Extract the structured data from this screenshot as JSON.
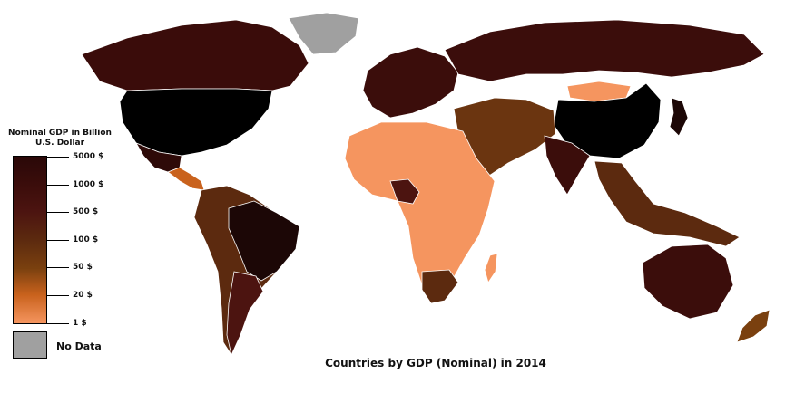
{
  "legend": {
    "title_line1": "Nominal GDP in Billion",
    "title_line2": "U.S. Dollar",
    "labels": [
      "5000 $",
      "1000 $",
      "500 $",
      "100 $",
      "50 $",
      "20 $",
      "1 $"
    ],
    "no_data_label": "No Data",
    "no_data_color": "#a0a0a0",
    "gradient_colors": [
      "#2a0808",
      "#3b0d0b",
      "#4c1410",
      "#5c2a0f",
      "#7a400f",
      "#c9621d",
      "#f5955f"
    ]
  },
  "map_title": "Countries by GDP (Nominal) in 2014",
  "regions": {
    "north_america": {
      "name": "North America",
      "color": "#3a0c0a"
    },
    "usa": {
      "name": "USA",
      "color": "#000000"
    },
    "greenland": {
      "name": "Greenland",
      "color": "#a0a0a0"
    },
    "mexico": {
      "name": "Mexico",
      "color": "#2e0a08"
    },
    "central_america": {
      "name": "Central America",
      "color": "#c9621d"
    },
    "south_america": {
      "name": "South America",
      "color": "#5c2a0f"
    },
    "brazil": {
      "name": "Brazil",
      "color": "#1c0706"
    },
    "argentina": {
      "name": "Argentina",
      "color": "#4c1410"
    },
    "europe": {
      "name": "Europe",
      "color": "#3b0d0b"
    },
    "russia": {
      "name": "Russia",
      "color": "#3b0d0b"
    },
    "china": {
      "name": "China",
      "color": "#000000"
    },
    "mongolia": {
      "name": "Mongolia",
      "color": "#f5955f"
    },
    "middle_east": {
      "name": "Middle East",
      "color": "#6b3510"
    },
    "india": {
      "name": "India",
      "color": "#3b0d0b"
    },
    "southeast_asia": {
      "name": "Southeast Asia",
      "color": "#5c2a0f"
    },
    "japan": {
      "name": "Japan",
      "color": "#1c0706"
    },
    "africa": {
      "name": "Africa",
      "color": "#f5955f"
    },
    "nigeria": {
      "name": "Nigeria",
      "color": "#4c1410"
    },
    "south_africa": {
      "name": "South Africa",
      "color": "#5c2a0f"
    },
    "australia": {
      "name": "Australia",
      "color": "#3b0d0b"
    },
    "new_zealand": {
      "name": "New Zealand",
      "color": "#7a400f"
    }
  }
}
